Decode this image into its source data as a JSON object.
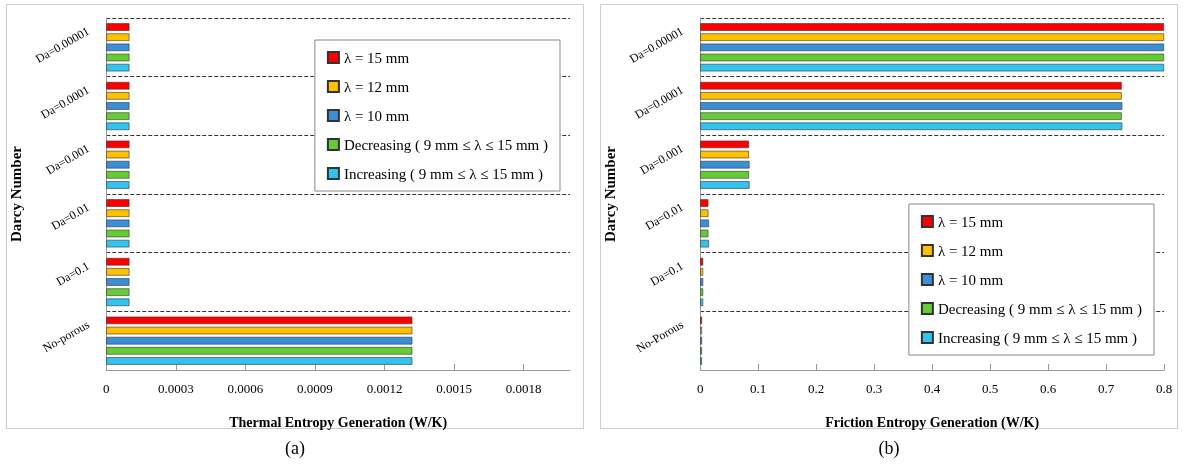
{
  "chart_data": [
    {
      "type": "bar",
      "orientation": "horizontal",
      "xlabel": "Thermal Entropy Generation (W/K)",
      "ylabel": "Darcy Number",
      "categories": [
        "Da=0.00001",
        "Da=0.0001",
        "Da=0.001",
        "Da=0.01",
        "Da=0.1",
        "No-porous"
      ],
      "series": [
        {
          "name": "λ = 15 mm",
          "color": "#ff0000",
          "values": [
            0.0001,
            0.0001,
            0.0001,
            0.0001,
            0.0001,
            0.00132
          ]
        },
        {
          "name": "λ = 12 mm",
          "color": "#ffc000",
          "values": [
            0.0001,
            0.0001,
            0.0001,
            0.0001,
            0.0001,
            0.00132
          ]
        },
        {
          "name": "λ = 10 mm",
          "color": "#3a8fd6",
          "values": [
            0.0001,
            0.0001,
            0.0001,
            0.0001,
            0.0001,
            0.00132
          ]
        },
        {
          "name": "Decreasing ( 9 mm ≤ λ ≤ 15 mm )",
          "color": "#66cc33",
          "values": [
            0.0001,
            0.0001,
            0.0001,
            0.0001,
            0.0001,
            0.00132
          ]
        },
        {
          "name": "Increasing ( 9 mm ≤ λ ≤ 15 mm )",
          "color": "#33c4ee",
          "values": [
            0.0001,
            0.0001,
            0.0001,
            0.0001,
            0.0001,
            0.00132
          ]
        }
      ],
      "xlim": [
        0,
        0.002
      ],
      "xticks": [
        0,
        0.0003,
        0.0006,
        0.0009,
        0.0012,
        0.0015,
        0.0018
      ],
      "grid": "y",
      "legend": "top right",
      "annotations": [
        "(a)"
      ]
    },
    {
      "type": "bar",
      "orientation": "horizontal",
      "xlabel": "Friction Entropy Generation (W/K)",
      "ylabel": "Darcy Number",
      "categories": [
        "Da=0.00001",
        "Da=0.0001",
        "Da=0.001",
        "Da=0.01",
        "Da=0.1",
        "No-Porous"
      ],
      "series": [
        {
          "name": "λ = 15 mm",
          "color": "#ff0000",
          "values": [
            0.8,
            0.727,
            0.084,
            0.014,
            0.005,
            0.003
          ]
        },
        {
          "name": "λ = 12 mm",
          "color": "#ffc000",
          "values": [
            0.8,
            0.727,
            0.084,
            0.014,
            0.005,
            0.003
          ]
        },
        {
          "name": "λ = 10 mm",
          "color": "#3a8fd6",
          "values": [
            0.8,
            0.728,
            0.085,
            0.015,
            0.005,
            0.003
          ]
        },
        {
          "name": "Decreasing ( 9 mm ≤ λ ≤ 15 mm )",
          "color": "#66cc33",
          "values": [
            0.8,
            0.727,
            0.084,
            0.014,
            0.005,
            0.003
          ]
        },
        {
          "name": "Increasing ( 9 mm ≤ λ ≤ 15 mm )",
          "color": "#33c4ee",
          "values": [
            0.8,
            0.728,
            0.085,
            0.015,
            0.005,
            0.003
          ]
        }
      ],
      "xlim": [
        0,
        0.8
      ],
      "xticks": [
        0,
        0.1,
        0.2,
        0.3,
        0.4,
        0.5,
        0.6,
        0.7,
        0.8
      ],
      "grid": "y",
      "legend": "bottom right",
      "annotations": [
        "(b)"
      ]
    }
  ]
}
